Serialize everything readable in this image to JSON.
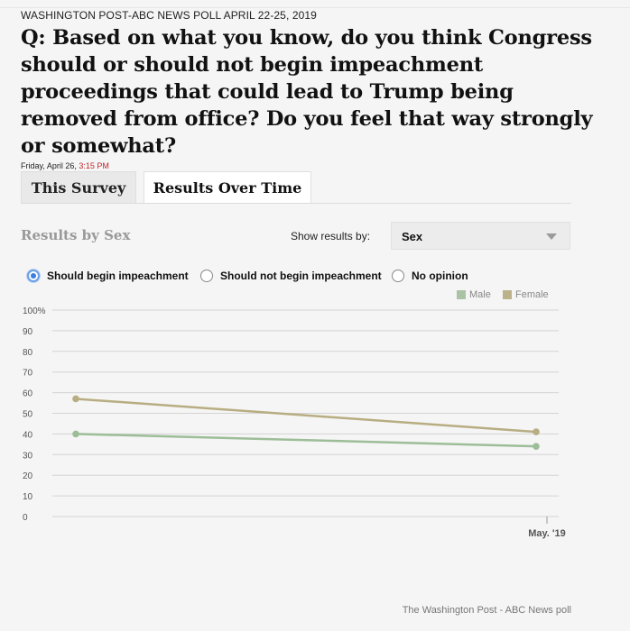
{
  "header": {
    "kicker": "WASHINGTON POST-ABC NEWS POLL APRIL 22-25, 2019",
    "question": "Q: Based on what you know, do you think Congress should or should not begin impeachment proceedings that could lead to Trump being removed from office? Do you feel that way strongly or somewhat?",
    "date": "Friday, April 26, ",
    "time": "3:15 PM"
  },
  "tabs": {
    "this_survey": "This Survey",
    "results_over_time": "Results Over Time",
    "active": "results_over_time"
  },
  "controls": {
    "results_title": "Results by Sex",
    "show_by_label": "Show results by:",
    "show_by_value": "Sex",
    "options": [
      {
        "label": "Should begin impeachment",
        "selected": true
      },
      {
        "label": "Should not begin impeachment",
        "selected": false
      },
      {
        "label": "No opinion",
        "selected": false
      }
    ]
  },
  "colors": {
    "male": "#9dbd98",
    "female": "#b8ad82",
    "male_swatch": "#a9c3a4",
    "female_swatch": "#bcb289",
    "grid": "#d4d4d4",
    "axis_text": "#555555"
  },
  "chart_data": {
    "type": "line",
    "title": "Results by Sex",
    "xlabel": "",
    "ylabel": "",
    "ylim": [
      0,
      100
    ],
    "y_ticks": [
      "100%",
      "90",
      "80",
      "70",
      "60",
      "50",
      "40",
      "30",
      "20",
      "10",
      "0"
    ],
    "x_tick_labels": [
      "",
      "May. '19"
    ],
    "legend": [
      "Male",
      "Female"
    ],
    "series": [
      {
        "name": "Male",
        "values": [
          40,
          34
        ]
      },
      {
        "name": "Female",
        "values": [
          57,
          41
        ]
      }
    ]
  },
  "footer": {
    "source": "The Washington Post - ABC News poll"
  }
}
